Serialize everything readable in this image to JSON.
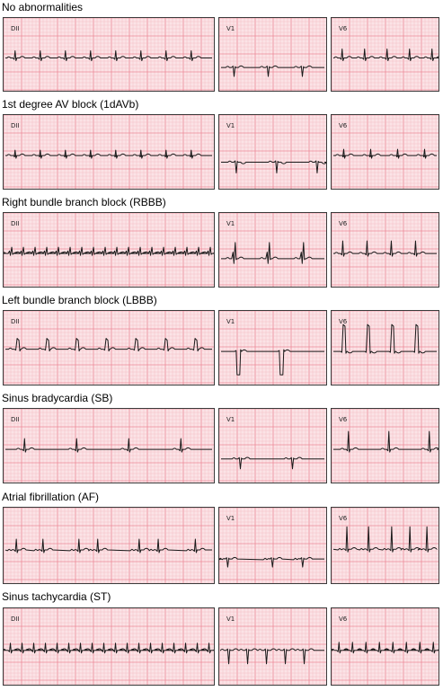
{
  "rows": [
    {
      "title": "No abnormalities",
      "leads": [
        "DII",
        "V1",
        "V6"
      ]
    },
    {
      "title": "1st degree AV block (1dAVb)",
      "leads": [
        "DII",
        "V1",
        "V6"
      ]
    },
    {
      "title": "Right bundle branch block (RBBB)",
      "leads": [
        "DII",
        "V1",
        "V6"
      ]
    },
    {
      "title": "Left bundle branch block (LBBB)",
      "leads": [
        "DII",
        "V1",
        "V6"
      ]
    },
    {
      "title": "Sinus bradycardia (SB)",
      "leads": [
        "DII",
        "V1",
        "V6"
      ]
    },
    {
      "title": "Atrial fibrillation (AF)",
      "leads": [
        "",
        "V1",
        "V6"
      ]
    },
    {
      "title": "Sinus tachycardia (ST)",
      "leads": [
        "DII",
        "V1",
        "V6"
      ]
    }
  ],
  "colors": {
    "paper": "#fbe3e6",
    "grid_minor": "#f4b7c0",
    "grid_major": "#ec8a98",
    "trace": "#1a1a1a"
  }
}
